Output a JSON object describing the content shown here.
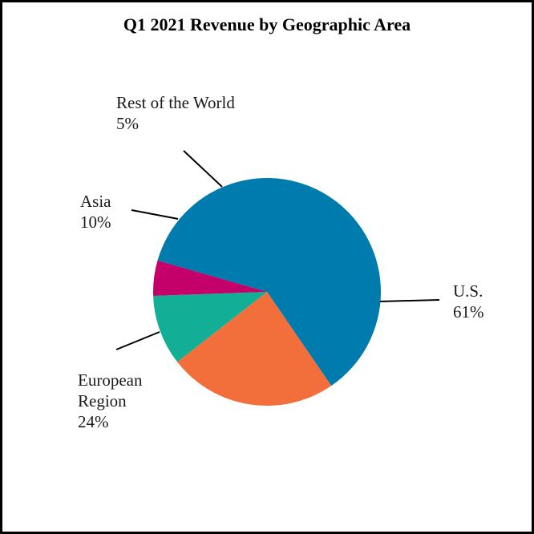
{
  "chart_data": {
    "type": "pie",
    "title": "Q1 2021 Revenue by Geographic Area",
    "slices": [
      {
        "label": [
          "U.S."
        ],
        "pct_text": "61%",
        "value": 61,
        "color": "#007bad"
      },
      {
        "label": [
          "European",
          "Region"
        ],
        "pct_text": "24%",
        "value": 24,
        "color": "#f26f3b"
      },
      {
        "label": [
          "Asia"
        ],
        "pct_text": "10%",
        "value": 10,
        "color": "#13ae96"
      },
      {
        "label": [
          "Rest of the World"
        ],
        "pct_text": "5%",
        "value": 5,
        "color": "#c4006a"
      }
    ]
  }
}
